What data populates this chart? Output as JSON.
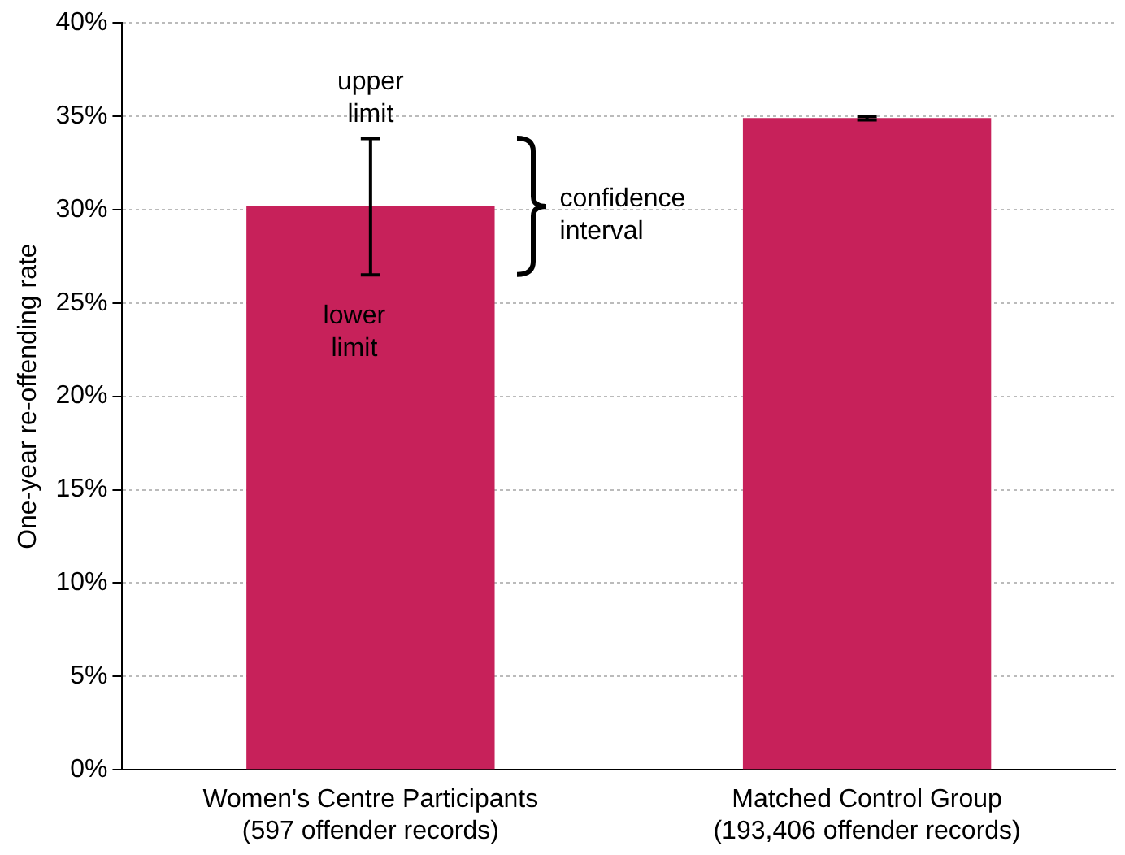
{
  "chart_data": {
    "type": "bar",
    "ylabel": "One-year re-offending rate",
    "categories": [
      "Women's Centre Participants\n(597 offender records)",
      "Matched Control Group\n(193,406 offender records)"
    ],
    "values": [
      30.2,
      34.9
    ],
    "errors": [
      [
        26.5,
        33.8
      ],
      [
        34.8,
        35.0
      ]
    ],
    "color": "#c7215a",
    "ylim": [
      0,
      40
    ],
    "yticks": [
      {
        "value": 0,
        "label": "0%"
      },
      {
        "value": 5,
        "label": "5%"
      },
      {
        "value": 10,
        "label": "10%"
      },
      {
        "value": 15,
        "label": "15%"
      },
      {
        "value": 20,
        "label": "20%"
      },
      {
        "value": 25,
        "label": "25%"
      },
      {
        "value": 30,
        "label": "30%"
      },
      {
        "value": 35,
        "label": "35%"
      },
      {
        "value": 40,
        "label": "40%"
      }
    ],
    "grid": "y",
    "legend": false,
    "annotations": [
      {
        "text": "upper limit",
        "x": "Women's Centre Participants\n(597 offender records)",
        "y": 33.8
      },
      {
        "text": "lower limit",
        "x": "Women's Centre Participants\n(597 offender records)",
        "y": 26.5
      },
      "confidence interval"
    ]
  }
}
